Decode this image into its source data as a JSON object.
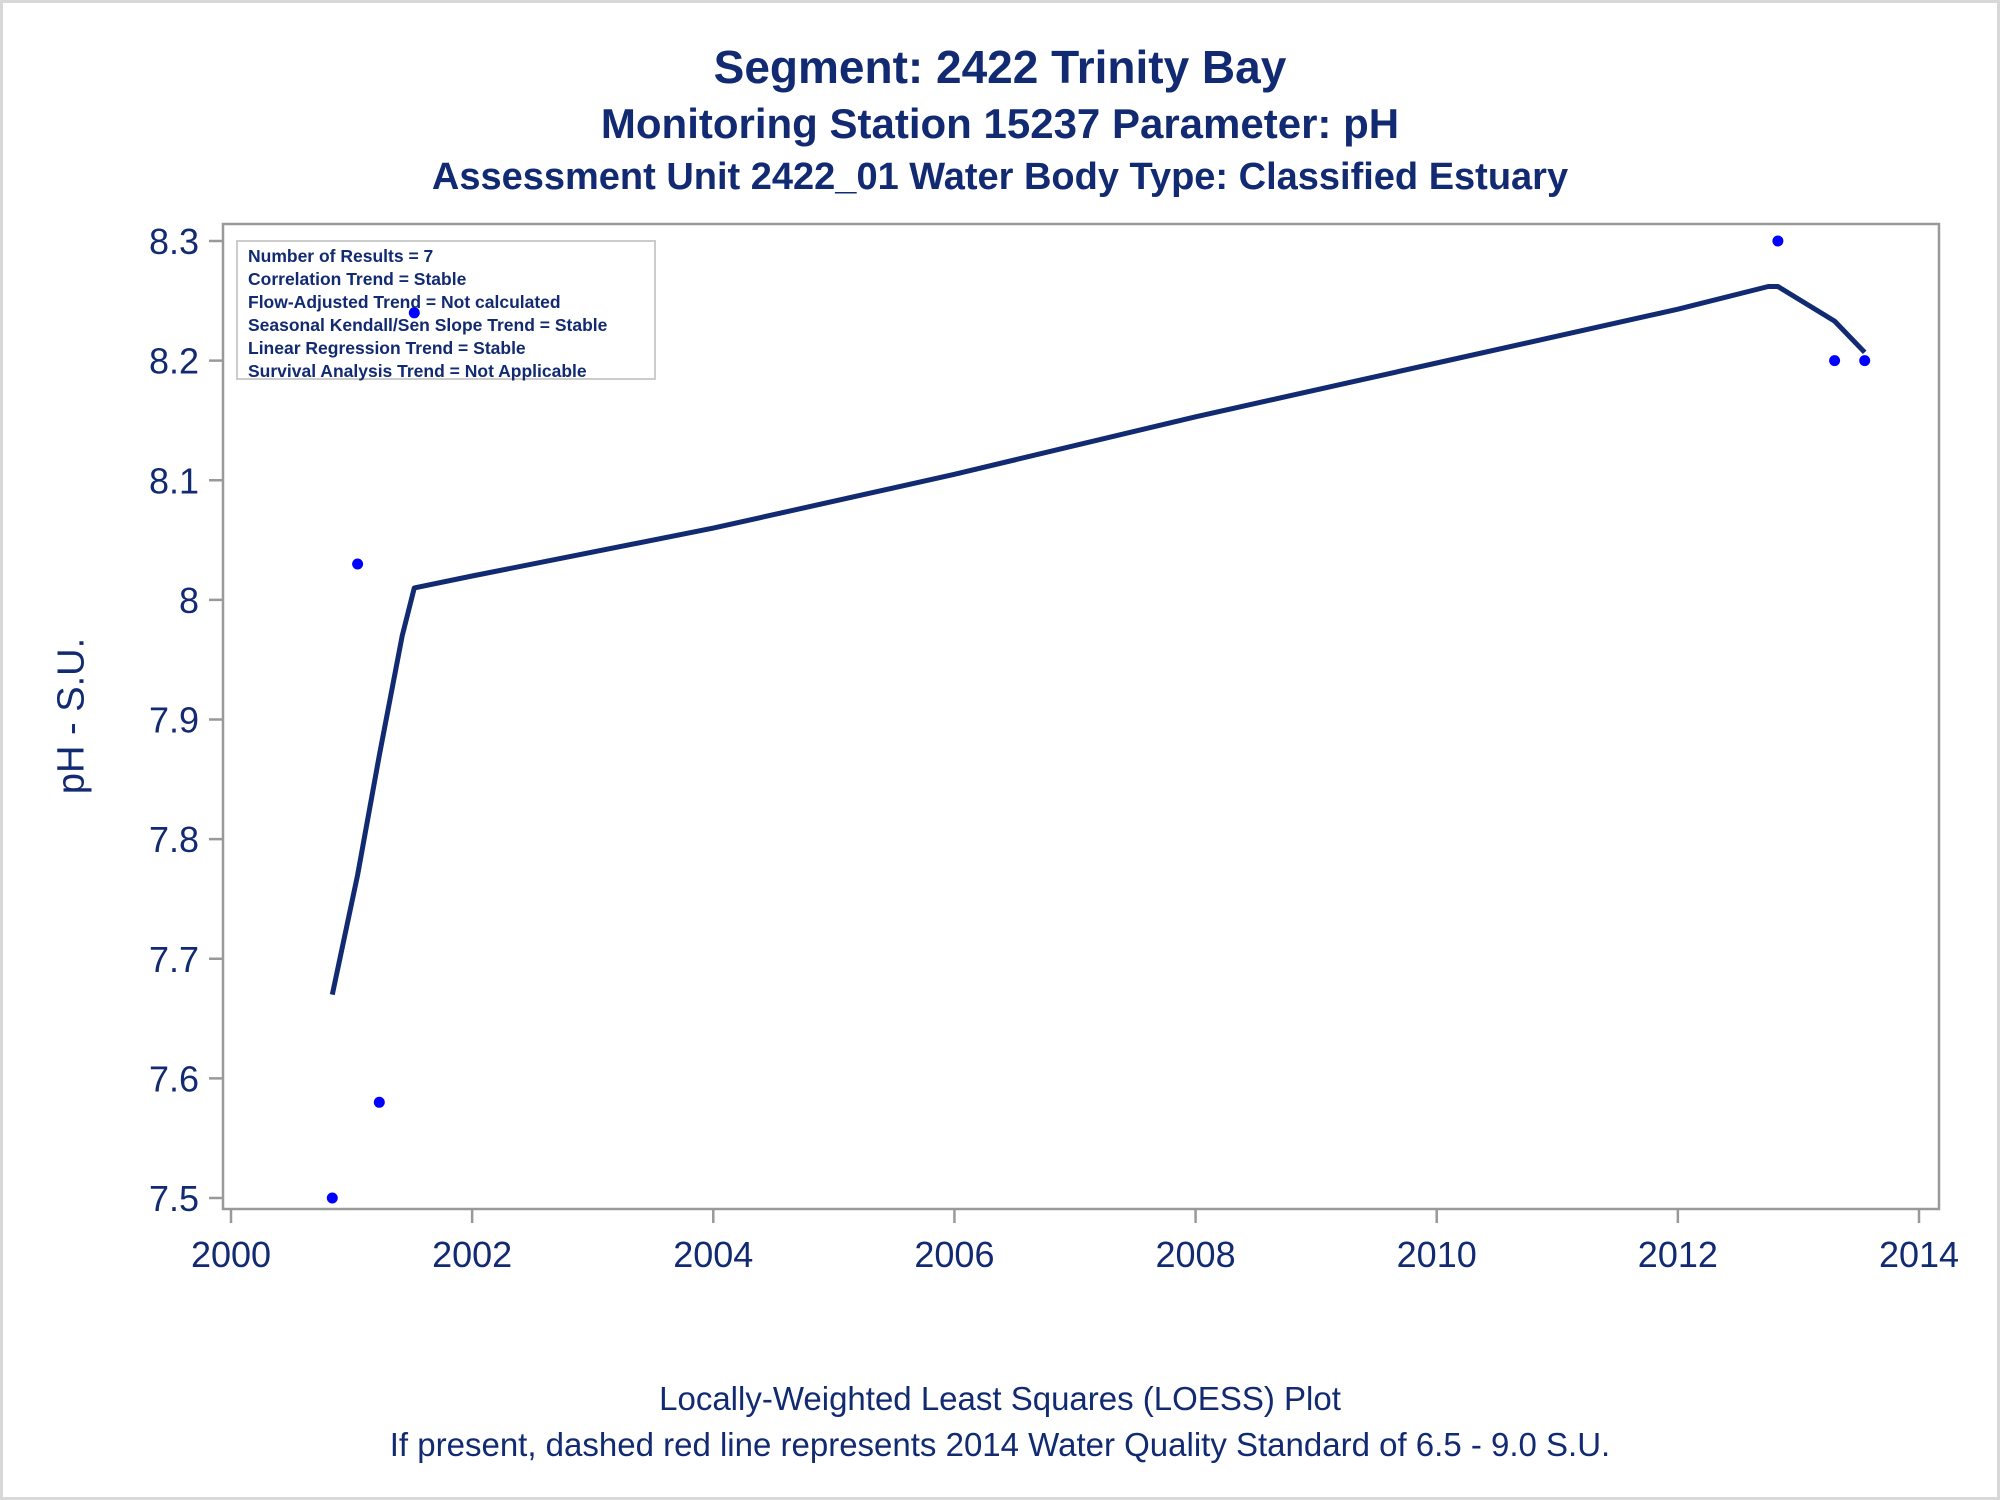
{
  "titles": [
    "Segment: 2422  Trinity Bay",
    "Monitoring Station 15237 Parameter: pH",
    "Assessment Unit 2422_01   Water Body Type: Classified Estuary"
  ],
  "footnotes": [
    "Locally-Weighted Least Squares (LOESS) Plot",
    "If present, dashed red line represents 2014 Water Quality Standard of 6.5 - 9.0 S.U."
  ],
  "stats_box": [
    "Number of Results = 7",
    "Correlation Trend = Stable",
    "Flow-Adjusted Trend = Not calculated",
    "Seasonal Kendall/Sen Slope Trend = Stable",
    "Linear Regression Trend = Stable",
    "Survival Analysis Trend = Not Applicable"
  ],
  "colors": {
    "text": "#112a72",
    "line": "#112a72",
    "points": "#0000ff",
    "axis": "#999999"
  },
  "chart_data": {
    "type": "scatter",
    "title": "Segment: 2422  Trinity Bay",
    "subtitle": "Monitoring Station 15237 Parameter: pH",
    "xlabel": "",
    "ylabel": "pH - S.U.",
    "xlim": [
      2000,
      2014
    ],
    "ylim": [
      7.49,
      8.31
    ],
    "xticks": [
      2000,
      2002,
      2004,
      2006,
      2008,
      2010,
      2012,
      2014
    ],
    "yticks": [
      7.5,
      7.6,
      7.7,
      7.8,
      7.9,
      8.0,
      8.1,
      8.2,
      8.3
    ],
    "ytick_labels": [
      "7.5",
      "7.6",
      "7.7",
      "7.8",
      "7.9",
      "8",
      "8.1",
      "8.2",
      "8.3"
    ],
    "grid": false,
    "series": [
      {
        "name": "",
        "kind": "points",
        "x": [
          2000.84,
          2001.05,
          2001.23,
          2001.52,
          2012.83,
          2013.3,
          2013.55
        ],
        "y": [
          7.5,
          8.03,
          7.58,
          8.24,
          8.3,
          8.2,
          8.2
        ]
      },
      {
        "name": "",
        "kind": "line",
        "x": [
          2000.84,
          2001.05,
          2001.23,
          2001.42,
          2001.52,
          2002.0,
          2004.0,
          2006.0,
          2008.0,
          2010.0,
          2012.0,
          2012.75,
          2012.83,
          2013.3,
          2013.55
        ],
        "y": [
          7.67,
          7.77,
          7.87,
          7.97,
          8.01,
          8.02,
          8.06,
          8.105,
          8.153,
          8.198,
          8.243,
          8.262,
          8.262,
          8.233,
          8.207
        ]
      }
    ]
  }
}
